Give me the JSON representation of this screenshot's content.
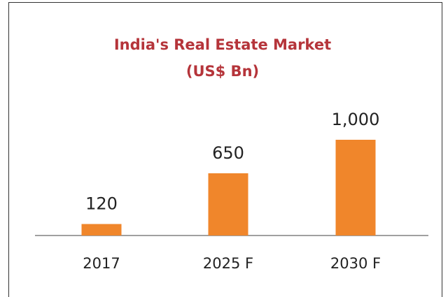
{
  "chart_data": {
    "type": "bar",
    "title": "India's Real Estate Market",
    "subtitle": "(US$ Bn)",
    "categories": [
      "2017",
      "2025 F",
      "2030 F"
    ],
    "values": [
      120,
      650,
      1000
    ],
    "value_labels": [
      "120",
      "650",
      "1,000"
    ],
    "color": "#f0862b"
  }
}
